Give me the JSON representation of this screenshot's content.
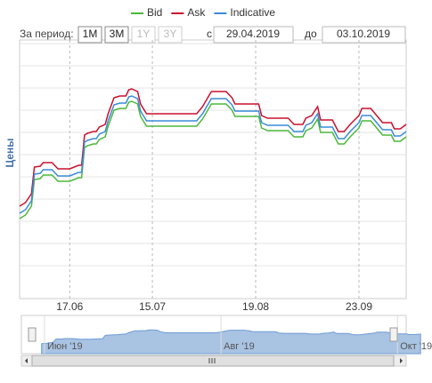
{
  "chart_data": {
    "type": "line",
    "y_axis_title": "Цены",
    "range_selector": {
      "label": "За период:",
      "buttons": [
        {
          "label": "1M",
          "enabled": true
        },
        {
          "label": "3M",
          "enabled": true
        },
        {
          "label": "1Y",
          "enabled": false
        },
        {
          "label": "3Y",
          "enabled": false
        }
      ],
      "from_label": "с",
      "from": "29.04.2019",
      "to_label": "до",
      "to": "03.10.2019"
    },
    "x": [
      "2019-05-31",
      "2019-06-02",
      "2019-06-04",
      "2019-06-05",
      "2019-06-07",
      "2019-06-08",
      "2019-06-11",
      "2019-06-13",
      "2019-06-17",
      "2019-06-20",
      "2019-06-21",
      "2019-06-22",
      "2019-06-23",
      "2019-06-25",
      "2019-06-26",
      "2019-06-27",
      "2019-06-29",
      "2019-06-30",
      "2019-07-02",
      "2019-07-04",
      "2019-07-06",
      "2019-07-07",
      "2019-07-08",
      "2019-07-10",
      "2019-07-11",
      "2019-07-13",
      "2019-07-30",
      "2019-08-01",
      "2019-08-04",
      "2019-08-09",
      "2019-08-11",
      "2019-08-12",
      "2019-08-20",
      "2019-08-21",
      "2019-08-23",
      "2019-08-30",
      "2019-09-01",
      "2019-09-04",
      "2019-09-05",
      "2019-09-07",
      "2019-09-09",
      "2019-09-10",
      "2019-09-14",
      "2019-09-16",
      "2019-09-18",
      "2019-09-20",
      "2019-09-23",
      "2019-09-24",
      "2019-09-27",
      "2019-09-29",
      "2019-10-01",
      "2019-10-04",
      "2019-10-05",
      "2019-10-07",
      "2019-10-09"
    ],
    "series": [
      {
        "name": "Bid",
        "color": "#4bb93a",
        "values": [
          4.12,
          4.28,
          4.68,
          5.88,
          5.92,
          6.08,
          6.08,
          5.8,
          5.8,
          5.96,
          5.96,
          7.32,
          7.4,
          7.48,
          7.48,
          7.68,
          7.8,
          8.28,
          9.0,
          9.08,
          9.08,
          9.36,
          9.4,
          9.28,
          8.72,
          8.28,
          8.28,
          8.6,
          9.28,
          9.28,
          9.0,
          8.72,
          8.72,
          8.2,
          8.08,
          8.08,
          7.8,
          7.8,
          8.08,
          8.2,
          8.6,
          8.0,
          8.0,
          7.48,
          7.48,
          7.8,
          8.2,
          8.52,
          8.52,
          8.2,
          7.88,
          7.88,
          7.6,
          7.6,
          7.8
        ]
      },
      {
        "name": "Ask",
        "color": "#c8102e",
        "values": [
          4.68,
          4.84,
          5.24,
          6.44,
          6.48,
          6.64,
          6.64,
          6.36,
          6.36,
          6.52,
          6.52,
          7.88,
          7.96,
          8.04,
          8.04,
          8.24,
          8.36,
          8.84,
          9.56,
          9.64,
          9.64,
          9.92,
          9.96,
          9.84,
          9.28,
          8.84,
          8.84,
          9.16,
          9.84,
          9.84,
          9.56,
          9.28,
          9.28,
          8.76,
          8.64,
          8.64,
          8.36,
          8.36,
          8.64,
          8.76,
          9.16,
          8.56,
          8.56,
          8.04,
          8.04,
          8.36,
          8.76,
          9.08,
          9.08,
          8.76,
          8.44,
          8.44,
          8.16,
          8.16,
          8.36
        ]
      },
      {
        "name": "Indicative",
        "color": "#3c8ad8",
        "values": [
          4.36,
          4.52,
          4.92,
          6.12,
          6.16,
          6.32,
          6.32,
          6.04,
          6.04,
          6.2,
          6.2,
          7.56,
          7.64,
          7.72,
          7.72,
          7.92,
          8.04,
          8.52,
          9.24,
          9.32,
          9.32,
          9.6,
          9.64,
          9.52,
          8.96,
          8.52,
          8.52,
          8.84,
          9.52,
          9.52,
          9.24,
          8.96,
          8.96,
          8.44,
          8.32,
          8.32,
          8.04,
          8.04,
          8.32,
          8.44,
          8.84,
          8.24,
          8.24,
          7.72,
          7.72,
          8.04,
          8.44,
          8.76,
          8.76,
          8.44,
          8.12,
          8.12,
          7.84,
          7.84,
          8.04
        ]
      }
    ],
    "xlim": [
      "2019-05-31",
      "2019-10-09"
    ],
    "xticks": [
      {
        "value": "2019-06-17",
        "label": "17.06"
      },
      {
        "value": "2019-07-15",
        "label": "15.07"
      },
      {
        "value": "2019-08-19",
        "label": "19.08"
      },
      {
        "value": "2019-09-23",
        "label": "23.09"
      }
    ],
    "ylim": [
      0.52,
      12.16
    ],
    "ygrid": [
      2,
      3,
      4,
      5,
      6,
      7,
      8,
      9,
      10,
      11,
      12
    ],
    "navigator": {
      "series": 2,
      "color": "#a9c3e3",
      "xlim": [
        "2019-05-24",
        "2019-10-04"
      ],
      "ticks": [
        {
          "value": "2019-06-01",
          "label": "Июн '19"
        },
        {
          "value": "2019-08-01",
          "label": "Авг '19"
        },
        {
          "value": "2019-10-01",
          "label": "Окт '19"
        }
      ]
    }
  }
}
